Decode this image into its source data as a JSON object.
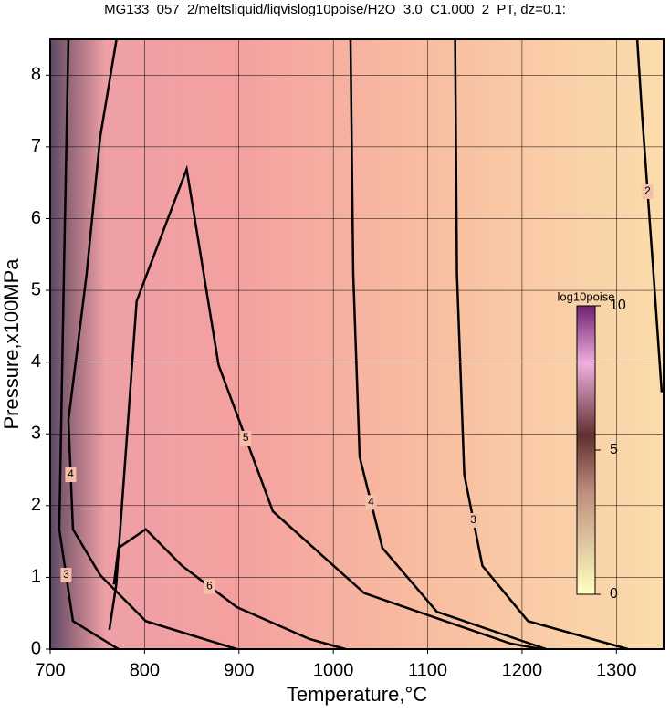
{
  "chart_data": {
    "type": "contour",
    "title": "MG133_057_2/meltsliquid/liqvislog10poise/H2O_3.0_C1.000_2_PT, dz=0.1:",
    "x_label": "Temperature,°C",
    "y_label": "Pressure,x100MPa",
    "xlim": [
      700,
      1350
    ],
    "ylim": [
      0,
      8.5
    ],
    "xticks": [
      700,
      800,
      900,
      1000,
      1100,
      1200,
      1300
    ],
    "yticks": [
      0,
      1,
      2,
      3,
      4,
      5,
      6,
      7,
      8
    ],
    "grid": true,
    "line_color": "#000000",
    "contours": [
      {
        "level": 3,
        "x": [
          719.3,
          714.5,
          709.6,
          724.1,
          772.3
        ],
        "y": [
          8.51,
          5.23,
          1.67,
          0.39,
          0
        ]
      },
      {
        "level": 4,
        "x": [
          770.4,
          753,
          738.6,
          719.3,
          724.1,
          753,
          801.3,
          897.7
        ],
        "y": [
          8.51,
          7.14,
          5.23,
          3.19,
          1.67,
          1.03,
          0.39,
          0
        ]
      },
      {
        "level": 5,
        "x": [
          762.7,
          770,
          791.6,
          844.6,
          878.4,
          936,
          1032.7,
          1187,
          1220
        ],
        "y": [
          0.27,
          0.9,
          4.85,
          6.69,
          3.96,
          1.92,
          0.78,
          0.08,
          0
        ]
      },
      {
        "level": 6,
        "x": [
          767.5,
          772.3,
          801.3,
          839.8,
          897.7,
          974.8,
          1013
        ],
        "y": [
          0.9,
          1.41,
          1.67,
          1.16,
          0.585,
          0.14,
          0
        ]
      },
      {
        "level": 4,
        "x": [
          1018.2,
          1021.1,
          1027.9,
          1052,
          1109.8,
          1225.6
        ],
        "y": [
          8.51,
          5.23,
          2.68,
          1.41,
          0.52,
          0
        ]
      },
      {
        "level": 3,
        "x": [
          1129.1,
          1131,
          1138.8,
          1158,
          1206.3,
          1312.3
        ],
        "y": [
          8.51,
          5.23,
          2.43,
          1.16,
          0.39,
          0
        ]
      },
      {
        "level": 2,
        "x": [
          1322,
          1326.8,
          1339.3,
          1348
        ],
        "y": [
          8.51,
          7.52,
          5.23,
          3.58
        ]
      }
    ],
    "colorbar": {
      "label": "log10poise",
      "lim": [
        0,
        10
      ],
      "ticks": [
        0,
        5,
        10
      ]
    }
  }
}
